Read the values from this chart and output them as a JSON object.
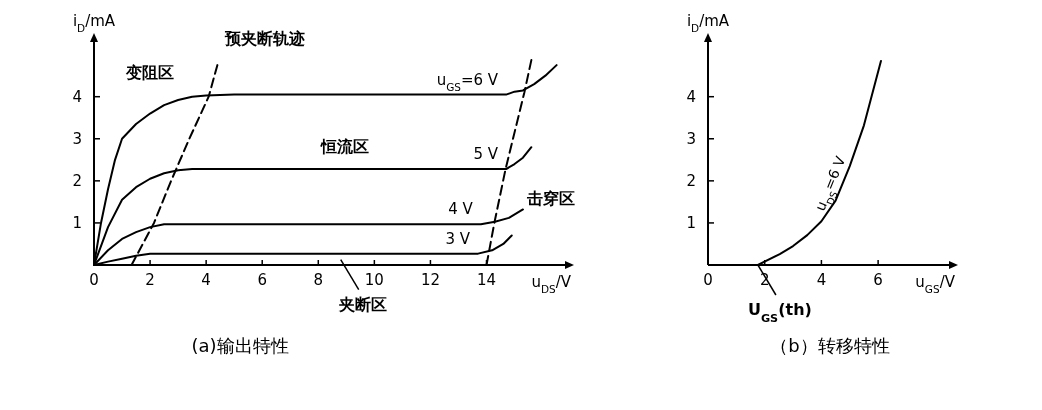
{
  "chart_data": [
    {
      "type": "line",
      "title": "(a)输出特性",
      "xlabel": "u$_{DS}$/V",
      "ylabel": "i$_{D}$/mA",
      "xlim": [
        0,
        16.8
      ],
      "ylim": [
        0,
        5.3
      ],
      "xticks": [
        0,
        2,
        4,
        6,
        8,
        10,
        12,
        14
      ],
      "yticks": [
        1,
        2,
        3,
        4
      ],
      "series": [
        {
          "name": "u$_{GS}$=6 V",
          "color": "#000000",
          "x": [
            0,
            0.25,
            0.5,
            0.75,
            1,
            1.5,
            2,
            2.5,
            3,
            3.5,
            4,
            5,
            14.7,
            15.0,
            15.3,
            15.7,
            16.1,
            16.5
          ],
          "values": [
            0,
            1.0,
            1.8,
            2.5,
            3.0,
            3.35,
            3.6,
            3.8,
            3.92,
            4.0,
            4.03,
            4.05,
            4.05,
            4.12,
            4.15,
            4.3,
            4.5,
            4.75
          ]
        },
        {
          "name": "5 V",
          "color": "#000000",
          "x": [
            0,
            0.5,
            1,
            1.5,
            2,
            2.5,
            3,
            3.5,
            14.7,
            15.0,
            15.3,
            15.6
          ],
          "values": [
            0,
            0.9,
            1.55,
            1.85,
            2.05,
            2.18,
            2.25,
            2.28,
            2.28,
            2.4,
            2.55,
            2.8
          ]
        },
        {
          "name": "4 V",
          "color": "#000000",
          "x": [
            0,
            0.5,
            1,
            1.5,
            2,
            2.5,
            13.8,
            14.3,
            14.8,
            15.3
          ],
          "values": [
            0,
            0.35,
            0.62,
            0.78,
            0.9,
            0.97,
            0.97,
            1.03,
            1.12,
            1.32
          ]
        },
        {
          "name": "3 V",
          "color": "#000000",
          "x": [
            0,
            0.5,
            1,
            1.5,
            2,
            13.7,
            14.2,
            14.6,
            14.9
          ],
          "values": [
            0,
            0.08,
            0.15,
            0.22,
            0.27,
            0.27,
            0.35,
            0.5,
            0.7
          ]
        },
        {
          "color": "#000000",
          "line_style": "dashed",
          "x": [
            1.34,
            2.14,
            2.75,
            3.4,
            4.09,
            4.4
          ],
          "values": [
            0,
            1,
            2,
            3,
            4,
            4.75
          ]
        },
        {
          "color": "#000000",
          "line_style": "dashed",
          "x": [
            14.0,
            14.28,
            14.68,
            15.35,
            15.6
          ],
          "values": [
            0,
            1,
            2.28,
            4.1,
            4.87
          ]
        }
      ],
      "annotations": [
        "预夹断轨迹",
        "变阻区",
        "恒流区",
        "击穿区",
        {
          "text": "夹断区",
          "x": 8.8,
          "y": 0.13
        }
      ]
    },
    {
      "type": "line",
      "title": "（b）转移特性",
      "xlabel": "u$_{GS}$/V",
      "ylabel": "i$_{D}$/mA",
      "xlim": [
        0,
        8.5
      ],
      "ylim": [
        0,
        5.3
      ],
      "xticks": [
        0,
        2,
        4,
        6
      ],
      "yticks": [
        1,
        2,
        3,
        4
      ],
      "series": [
        {
          "name": "u$_{DS}$=6 V",
          "color": "#000000",
          "x": [
            1.76,
            2.53,
            3.0,
            3.5,
            4.0,
            4.5,
            5.0,
            5.5,
            6.1
          ],
          "values": [
            0,
            0.26,
            0.45,
            0.71,
            1.04,
            1.53,
            2.35,
            3.32,
            4.85
          ]
        }
      ],
      "annotations": [
        {
          "text": "U$_{GS}$(th)",
          "x": 1.76,
          "y": 0
        }
      ]
    }
  ]
}
